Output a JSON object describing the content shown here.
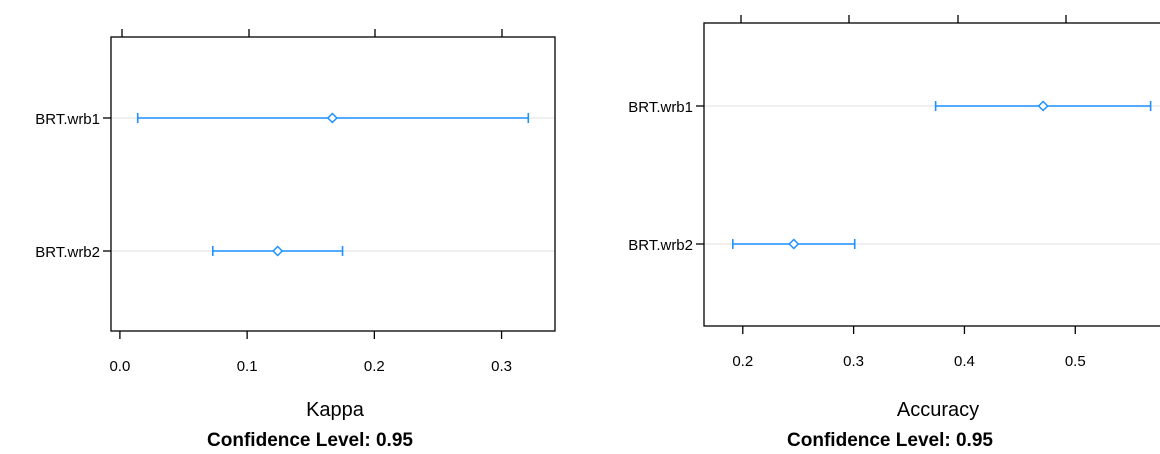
{
  "colors": {
    "series": "#1e90ff",
    "grid": "#e6e6e6",
    "frame": "#000000"
  },
  "chart_data": [
    {
      "type": "dotplot",
      "xlabel": "Kappa",
      "caption_prefix": "Confidence Level:",
      "confidence_level": "0.95",
      "categories": [
        "BRT.wrb1",
        "BRT.wrb2"
      ],
      "estimates": [
        0.167,
        0.124
      ],
      "lower": [
        0.014,
        0.073
      ],
      "upper": [
        0.321,
        0.175
      ],
      "xticks": [
        "0.0",
        "0.1",
        "0.2",
        "0.3"
      ],
      "tick_values": [
        0.0,
        0.1,
        0.2,
        0.3
      ],
      "xlim": [
        -0.007,
        0.342
      ]
    },
    {
      "type": "dotplot",
      "xlabel": "Accuracy",
      "caption_prefix": "Confidence Level:",
      "confidence_level": "0.95",
      "categories": [
        "BRT.wrb1",
        "BRT.wrb2"
      ],
      "estimates": [
        0.471,
        0.246
      ],
      "lower": [
        0.374,
        0.191
      ],
      "upper": [
        0.568,
        0.301
      ],
      "xticks": [
        "0.2",
        "0.3",
        "0.4",
        "0.5"
      ],
      "tick_values": [
        0.2,
        0.3,
        0.4,
        0.5
      ],
      "xlim": [
        0.165,
        0.59
      ]
    }
  ]
}
